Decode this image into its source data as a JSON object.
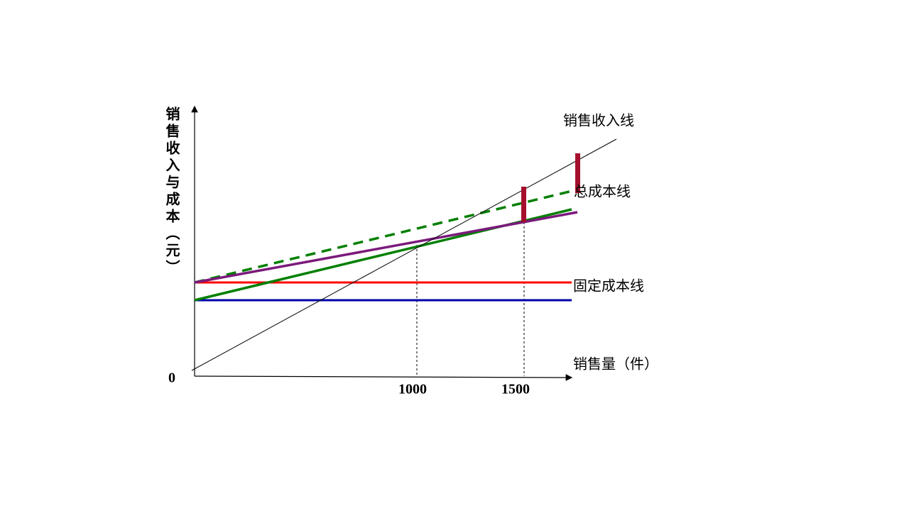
{
  "diagram": {
    "y_axis_label": "销售收入与成本（元）",
    "x_axis_label": "销售量（件）",
    "origin_label": "0",
    "x_tick_labels": [
      "1000",
      "1500"
    ],
    "line_labels": {
      "revenue": "销售收入线",
      "total_cost": "总成本线",
      "fixed_cost": "固定成本线"
    }
  }
}
